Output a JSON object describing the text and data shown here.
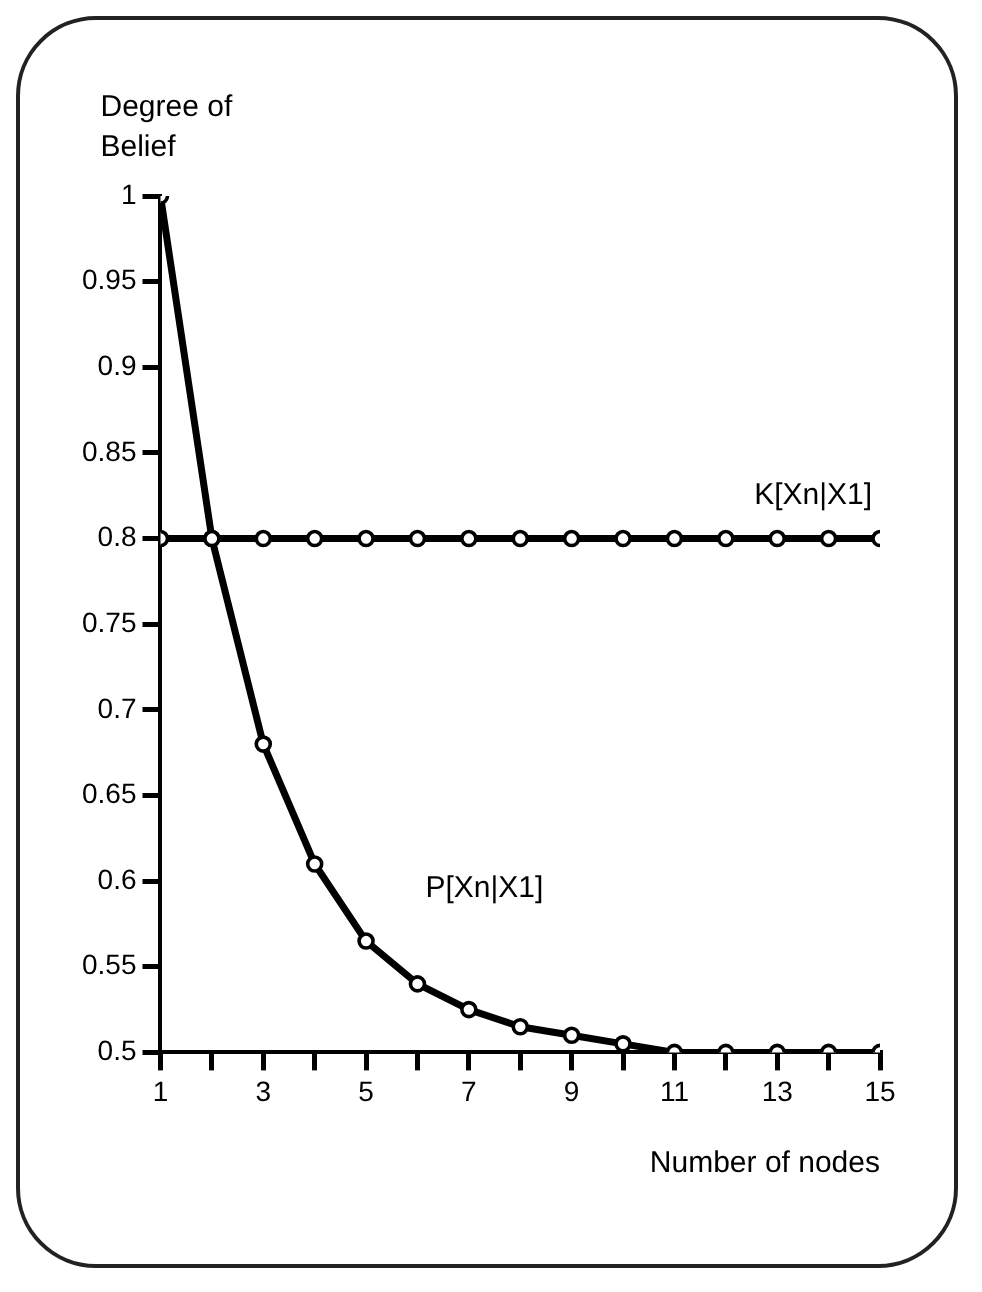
{
  "chart_data": {
    "type": "line",
    "xlabel": "Number of nodes",
    "ylabel": "Degree of Belief",
    "x": [
      1,
      2,
      3,
      4,
      5,
      6,
      7,
      8,
      9,
      10,
      11,
      12,
      13,
      14,
      15
    ],
    "series": [
      {
        "name": "K[Xn|X1]",
        "color": "#000000",
        "values": [
          0.8,
          0.8,
          0.8,
          0.8,
          0.8,
          0.8,
          0.8,
          0.8,
          0.8,
          0.8,
          0.8,
          0.8,
          0.8,
          0.8,
          0.8
        ]
      },
      {
        "name": "P[Xn|X1]",
        "color": "#000000",
        "values": [
          1,
          0.8,
          0.68,
          0.61,
          0.565,
          0.54,
          0.525,
          0.515,
          0.51,
          0.505,
          0.5,
          0.5,
          0.5,
          0.5,
          0.5
        ]
      }
    ],
    "xlim": [
      1,
      15
    ],
    "xticks": [
      1,
      {
        "value": 2,
        "label": null
      },
      3,
      {
        "value": 4,
        "label": null
      },
      5,
      {
        "value": 6,
        "label": null
      },
      7,
      {
        "value": 8,
        "label": null
      },
      9,
      {
        "value": 10,
        "label": null
      },
      11,
      {
        "value": 12,
        "label": null
      },
      13,
      {
        "value": 14,
        "label": null
      },
      15
    ],
    "ylim": [
      0.5,
      1
    ],
    "yticks": [
      0.5,
      0.55,
      0.6,
      0.65,
      0.7,
      0.75,
      0.8,
      0.85,
      0.9,
      0.95,
      1
    ],
    "grid": false,
    "legend": false,
    "marker": "circle",
    "line_style": "solid"
  }
}
